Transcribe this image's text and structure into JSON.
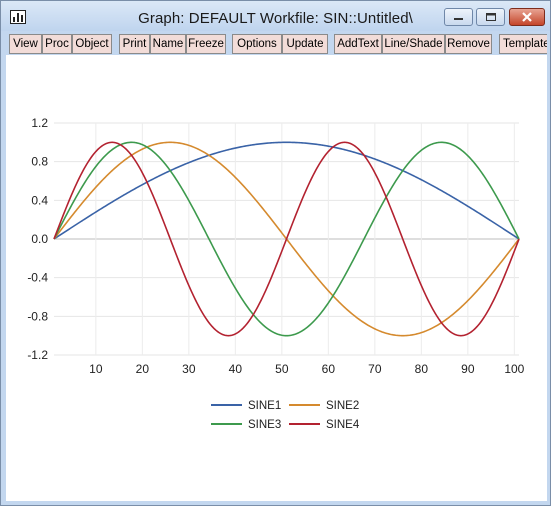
{
  "window": {
    "title": "Graph: DEFAULT    Workfile: SIN::Untitled\\"
  },
  "toolbar": {
    "buttons": [
      "View",
      "Proc",
      "Object",
      "Print",
      "Name",
      "Freeze",
      "Options",
      "Update",
      "AddText",
      "Line/Shade",
      "Remove",
      "Template"
    ]
  },
  "icons": {
    "app": "chart-icon",
    "minimize": "minimize-icon",
    "maximize": "maximize-icon",
    "close": "close-icon"
  },
  "chart_data": {
    "type": "line",
    "title": "",
    "xlabel": "",
    "ylabel": "",
    "xlim": [
      1,
      101
    ],
    "ylim": [
      -1.2,
      1.2
    ],
    "x_ticks": [
      10,
      20,
      30,
      40,
      50,
      60,
      70,
      80,
      90,
      100
    ],
    "y_ticks": [
      -1.2,
      -0.8,
      -0.4,
      0.0,
      0.4,
      0.8,
      1.2
    ],
    "y_tick_labels": [
      "-1.2",
      "-0.8",
      "-0.4",
      "0.0",
      "0.4",
      "0.8",
      "1.2"
    ],
    "grid": true,
    "legend_position": "bottom-center",
    "series": [
      {
        "name": "SINE1",
        "color": "#3a63a7",
        "half_periods": 1
      },
      {
        "name": "SINE2",
        "color": "#d58a2e",
        "half_periods": 2
      },
      {
        "name": "SINE3",
        "color": "#3d9a4d",
        "half_periods": 3
      },
      {
        "name": "SINE4",
        "color": "#b32230",
        "half_periods": 4
      }
    ]
  }
}
